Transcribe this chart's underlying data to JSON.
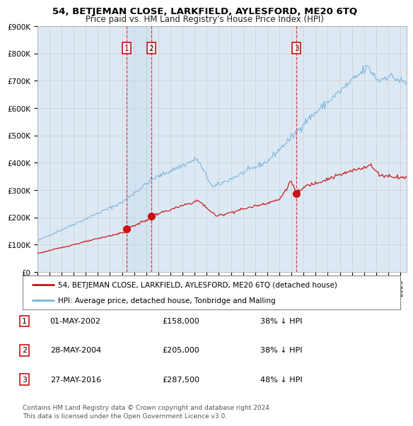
{
  "title": "54, BETJEMAN CLOSE, LARKFIELD, AYLESFORD, ME20 6TQ",
  "subtitle": "Price paid vs. HM Land Registry's House Price Index (HPI)",
  "background_color": "#ffffff",
  "plot_bg_color": "#dce9f5",
  "hpi_line_color": "#7ab3d9",
  "price_line_color": "#cc1111",
  "price_dot_color": "#cc1111",
  "vline_color": "#dd2222",
  "shade_color": "#c5d9ed",
  "transactions": [
    {
      "label": "1",
      "date_str": "01-MAY-2002",
      "date_num": 2002.37,
      "price": 158000
    },
    {
      "label": "2",
      "date_str": "28-MAY-2004",
      "date_num": 2004.41,
      "price": 205000
    },
    {
      "label": "3",
      "date_str": "27-MAY-2016",
      "date_num": 2016.41,
      "price": 287500
    }
  ],
  "legend_entries": [
    "54, BETJEMAN CLOSE, LARKFIELD, AYLESFORD, ME20 6TQ (detached house)",
    "HPI: Average price, detached house, Tonbridge and Malling"
  ],
  "table_rows": [
    [
      "1",
      "01-MAY-2002",
      "£158,000",
      "38% ↓ HPI"
    ],
    [
      "2",
      "28-MAY-2004",
      "£205,000",
      "38% ↓ HPI"
    ],
    [
      "3",
      "27-MAY-2016",
      "£287,500",
      "48% ↓ HPI"
    ]
  ],
  "footer": "Contains HM Land Registry data © Crown copyright and database right 2024.\nThis data is licensed under the Open Government Licence v3.0.",
  "ylim": [
    0,
    900000
  ],
  "yticks": [
    0,
    100000,
    200000,
    300000,
    400000,
    500000,
    600000,
    700000,
    800000,
    900000
  ],
  "ytick_labels": [
    "£0",
    "£100K",
    "£200K",
    "£300K",
    "£400K",
    "£500K",
    "£600K",
    "£700K",
    "£800K",
    "£900K"
  ],
  "xlim_start": 1995.0,
  "xlim_end": 2025.5
}
